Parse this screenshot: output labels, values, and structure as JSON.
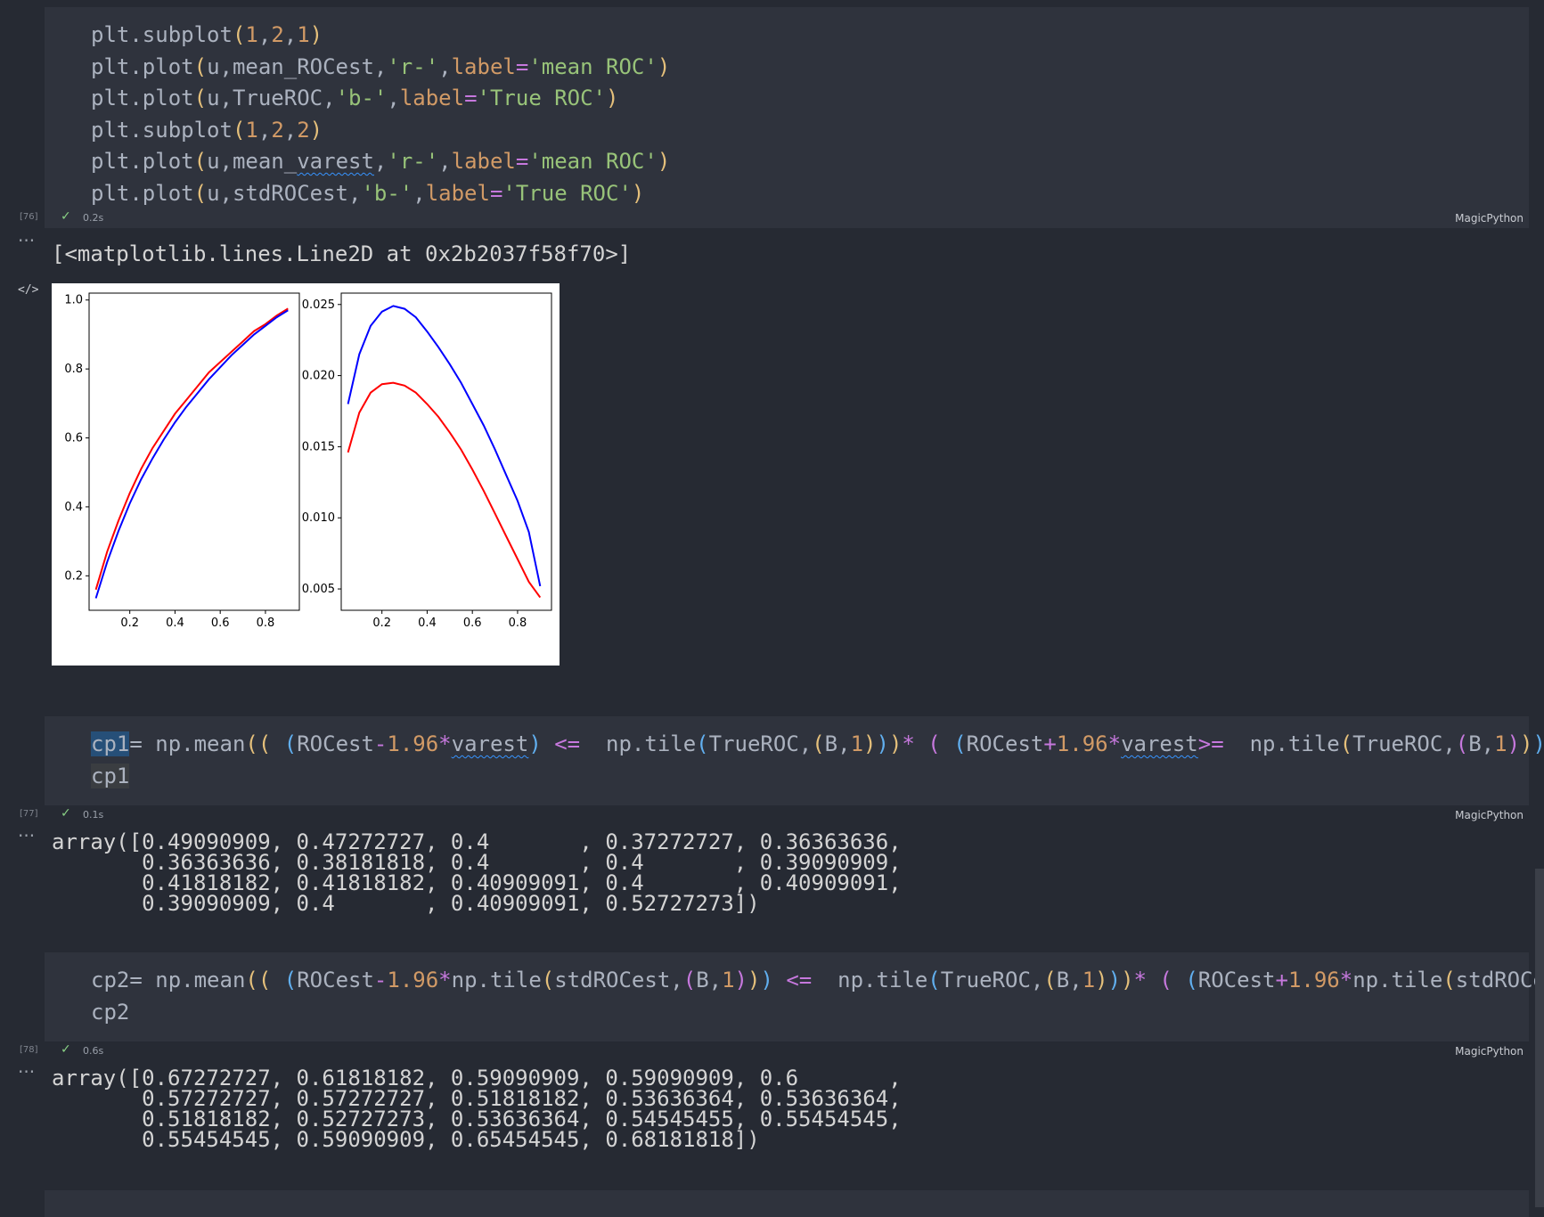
{
  "cells": [
    {
      "exec_index": "[76]",
      "exec_time": "0.2s",
      "language": "MagicPython",
      "output_repr": "[<matplotlib.lines.Line2D at 0x2b2037f58f70>]"
    },
    {
      "exec_index": "[77]",
      "exec_time": "0.1s",
      "language": "MagicPython",
      "output_lines": [
        "array([0.49090909, 0.47272727, 0.4       , 0.37272727, 0.36363636,",
        "       0.36363636, 0.38181818, 0.4       , 0.4       , 0.39090909,",
        "       0.41818182, 0.41818182, 0.40909091, 0.4       , 0.40909091,",
        "       0.39090909, 0.4       , 0.40909091, 0.52727273])"
      ]
    },
    {
      "exec_index": "[78]",
      "exec_time": "0.6s",
      "language": "MagicPython",
      "output_lines": [
        "array([0.67272727, 0.61818182, 0.59090909, 0.59090909, 0.6       ,",
        "       0.57272727, 0.57272727, 0.51818182, 0.53636364, 0.53636364,",
        "       0.51818182, 0.52727273, 0.53636364, 0.54545455, 0.55454545,",
        "       0.55454545, 0.59090909, 0.65454545, 0.68181818])"
      ]
    }
  ],
  "code": {
    "c1l1": [
      "plt",
      ".subplot",
      "(",
      "1",
      ",",
      "2",
      ",",
      "1",
      ")"
    ],
    "c1l2": [
      "plt",
      ".plot",
      "(",
      "u,mean_ROCest,",
      "'r-'",
      ",",
      "label",
      "=",
      "'mean ROC'",
      ")"
    ],
    "c1l3": [
      "plt",
      ".plot",
      "(",
      "u,TrueROC,",
      "'b-'",
      ",",
      "label",
      "=",
      "'True ROC'",
      ")"
    ],
    "c1l4": [
      "plt",
      ".subplot",
      "(",
      "1",
      ",",
      "2",
      ",",
      "2",
      ")"
    ],
    "c1l5": [
      "plt",
      ".plot",
      "(",
      "u,mean_",
      "varest",
      ",",
      "'r-'",
      ",",
      "label",
      "=",
      "'mean ROC'",
      ")"
    ],
    "c1l6": [
      "plt",
      ".plot",
      "(",
      "u,stdROCest,",
      "'b-'",
      ",",
      "label",
      "=",
      "'True ROC'",
      ")"
    ],
    "c2l1": [
      "cp1",
      "= np.mean",
      "((",
      " (",
      "ROCest",
      "-",
      "1.96",
      "*",
      "varest",
      ")",
      " <= ",
      " np.tile",
      "(",
      "TrueROC,",
      "(",
      "B,",
      "1",
      ")",
      ")",
      ")",
      "*",
      " ( ",
      "(",
      "ROCest",
      "+",
      "1.96",
      "*",
      "varest",
      ">=",
      "  np.tile",
      "(",
      "TrueROC,",
      "(",
      "B,",
      "1",
      ")",
      ")",
      ")"
    ],
    "c2l2": [
      "cp1"
    ],
    "c3l1": [
      "cp2",
      "= np.mean",
      "((",
      " (",
      "ROCest",
      "-",
      "1.96",
      "*",
      "np.tile",
      "(",
      "stdROCest,",
      "(",
      "B,",
      "1",
      ")",
      ")",
      ")",
      " <= ",
      " np.tile",
      "(",
      "TrueROC,",
      "(",
      "B,",
      "1",
      ")",
      ")",
      ")",
      "*",
      " ( ",
      "(",
      "ROCest",
      "+",
      "1.96",
      "*",
      "np.tile",
      "(",
      "stdROCe"
    ],
    "c3l2": [
      "cp2"
    ]
  },
  "chart_data": [
    {
      "type": "line",
      "title": "",
      "xlabel": "",
      "ylabel": "",
      "xlim": [
        0.02,
        0.95
      ],
      "ylim": [
        0.1,
        1.02
      ],
      "xticks": [
        "0.2",
        "0.4",
        "0.6",
        "0.8"
      ],
      "yticks": [
        "0.2",
        "0.4",
        "0.6",
        "0.8",
        "1.0"
      ],
      "x": [
        0.05,
        0.1,
        0.15,
        0.2,
        0.25,
        0.3,
        0.35,
        0.4,
        0.45,
        0.5,
        0.55,
        0.6,
        0.65,
        0.7,
        0.75,
        0.8,
        0.85,
        0.9
      ],
      "series": [
        {
          "color": "#ff0000",
          "values": [
            0.16,
            0.27,
            0.36,
            0.44,
            0.51,
            0.57,
            0.62,
            0.67,
            0.71,
            0.75,
            0.79,
            0.82,
            0.85,
            0.88,
            0.91,
            0.93,
            0.955,
            0.975
          ]
        },
        {
          "color": "#0000ff",
          "values": [
            0.135,
            0.24,
            0.33,
            0.41,
            0.48,
            0.54,
            0.595,
            0.645,
            0.69,
            0.73,
            0.77,
            0.805,
            0.84,
            0.87,
            0.9,
            0.925,
            0.95,
            0.97
          ]
        }
      ]
    },
    {
      "type": "line",
      "title": "",
      "xlabel": "",
      "ylabel": "",
      "xlim": [
        0.02,
        0.95
      ],
      "ylim": [
        0.0035,
        0.0258
      ],
      "xticks": [
        "0.2",
        "0.4",
        "0.6",
        "0.8"
      ],
      "yticks": [
        "0.005",
        "0.010",
        "0.015",
        "0.020",
        "0.025"
      ],
      "x": [
        0.05,
        0.1,
        0.15,
        0.2,
        0.25,
        0.3,
        0.35,
        0.4,
        0.45,
        0.5,
        0.55,
        0.6,
        0.65,
        0.7,
        0.75,
        0.8,
        0.85,
        0.9
      ],
      "series": [
        {
          "color": "#0000ff",
          "values": [
            0.018,
            0.0215,
            0.0235,
            0.0245,
            0.0249,
            0.0247,
            0.0241,
            0.0231,
            0.022,
            0.0208,
            0.0195,
            0.018,
            0.0165,
            0.0148,
            0.013,
            0.0112,
            0.009,
            0.0052
          ]
        },
        {
          "color": "#ff0000",
          "values": [
            0.0146,
            0.0174,
            0.0188,
            0.0194,
            0.0195,
            0.0193,
            0.0188,
            0.018,
            0.0171,
            0.016,
            0.0148,
            0.0134,
            0.0119,
            0.0103,
            0.0087,
            0.0071,
            0.0055,
            0.0044
          ]
        }
      ]
    }
  ]
}
